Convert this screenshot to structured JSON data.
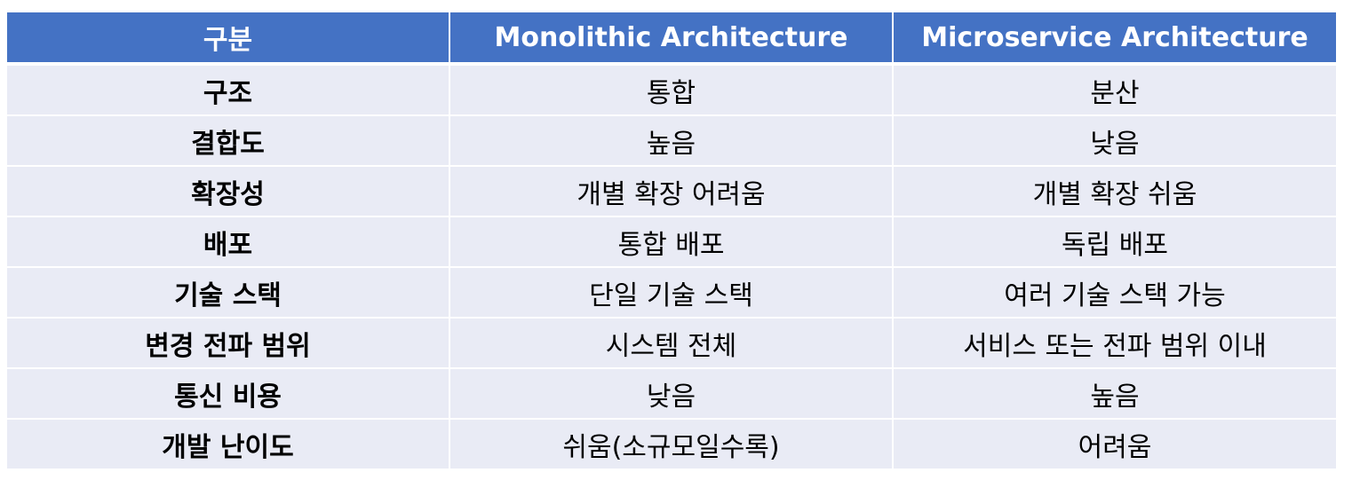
{
  "table": {
    "headers": [
      "구분",
      "Monolithic Architecture",
      "Microservice Architecture"
    ],
    "rows": [
      [
        "구조",
        "통합",
        "분산"
      ],
      [
        "결합도",
        "높음",
        "낮음"
      ],
      [
        "확장성",
        "개별 확장 어려움",
        "개별 확장 쉬움"
      ],
      [
        "배포",
        "통합 배포",
        "독립 배포"
      ],
      [
        "기술 스택",
        "단일 기술 스택",
        "여러 기술 스택 가능"
      ],
      [
        "변경 전파 범위",
        "시스템 전체",
        "서비스 또는 전파 범위 이내"
      ],
      [
        "통신 비용",
        "낮음",
        "높음"
      ],
      [
        "개발 난이도",
        "쉬움(소규모일수록)",
        "어려움"
      ]
    ]
  },
  "colors": {
    "header_bg": "#4472c4",
    "header_text": "#ffffff",
    "row_bg": "#e9ebf5",
    "grid": "#ffffff"
  }
}
